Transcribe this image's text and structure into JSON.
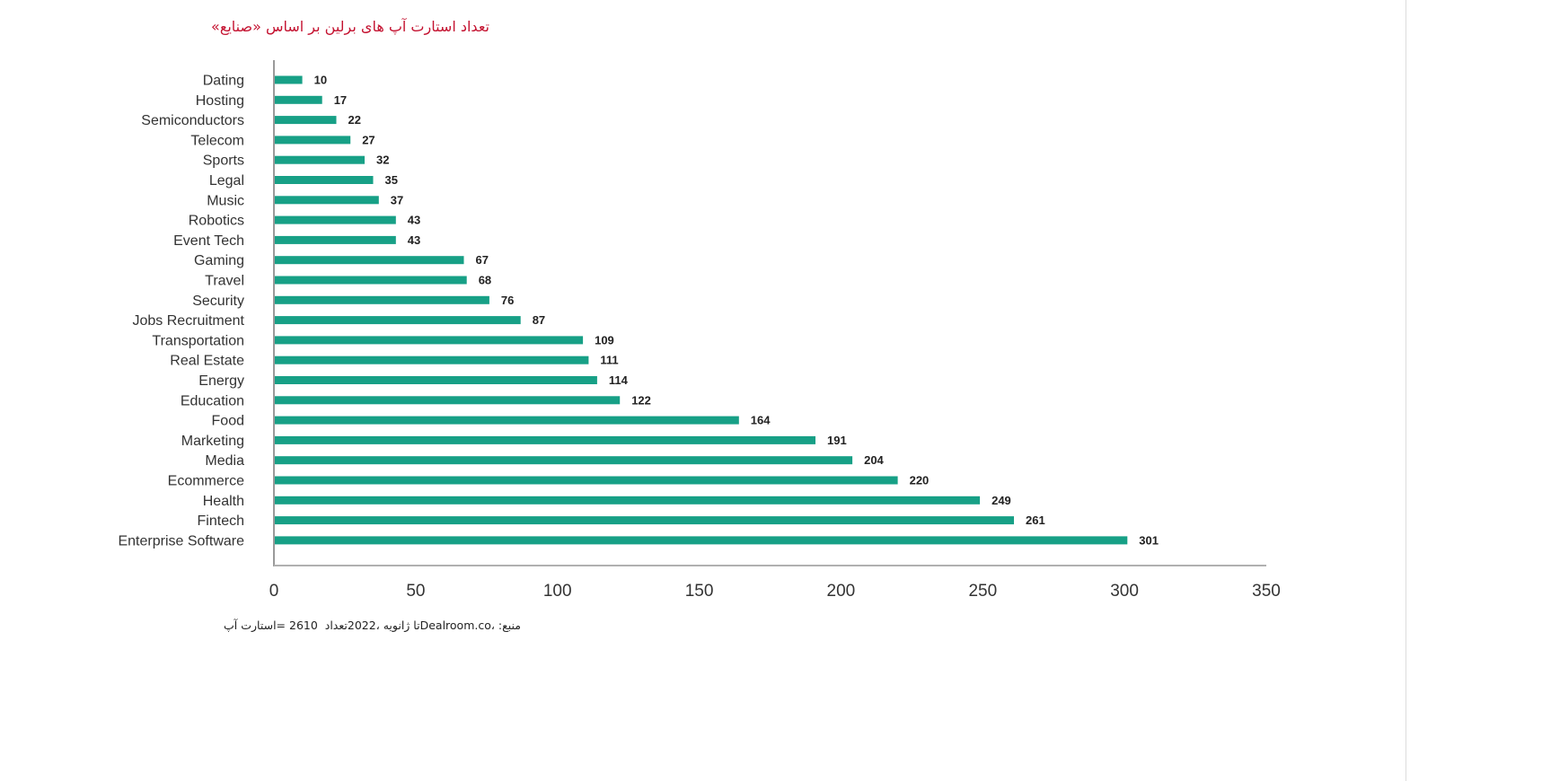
{
  "colors": {
    "bar": "#17a086",
    "title": "#c41230"
  },
  "chart_data": {
    "type": "bar",
    "orientation": "horizontal",
    "title": "تعداد استارت آپ های برلین بر اساس «صنایع»",
    "source": "منبع: ،Dealroom.coتا ژانویه ،2022تعداد  2610 =استارت آپ",
    "categories": [
      "Dating",
      "Hosting",
      "Semiconductors",
      "Telecom",
      "Sports",
      "Legal",
      "Music",
      "Robotics",
      "Event Tech",
      "Gaming",
      "Travel",
      "Security",
      "Jobs Recruitment",
      "Transportation",
      "Real Estate",
      "Energy",
      "Education",
      "Food",
      "Marketing",
      "Media",
      "Ecommerce",
      "Health",
      "Fintech",
      "Enterprise Software"
    ],
    "values": [
      10,
      17,
      22,
      27,
      32,
      35,
      37,
      43,
      43,
      67,
      68,
      76,
      87,
      109,
      111,
      114,
      122,
      164,
      191,
      204,
      220,
      249,
      261,
      301
    ],
    "xlim": [
      0,
      350
    ],
    "xticks": [
      0,
      50,
      100,
      150,
      200,
      250,
      300,
      350
    ]
  }
}
